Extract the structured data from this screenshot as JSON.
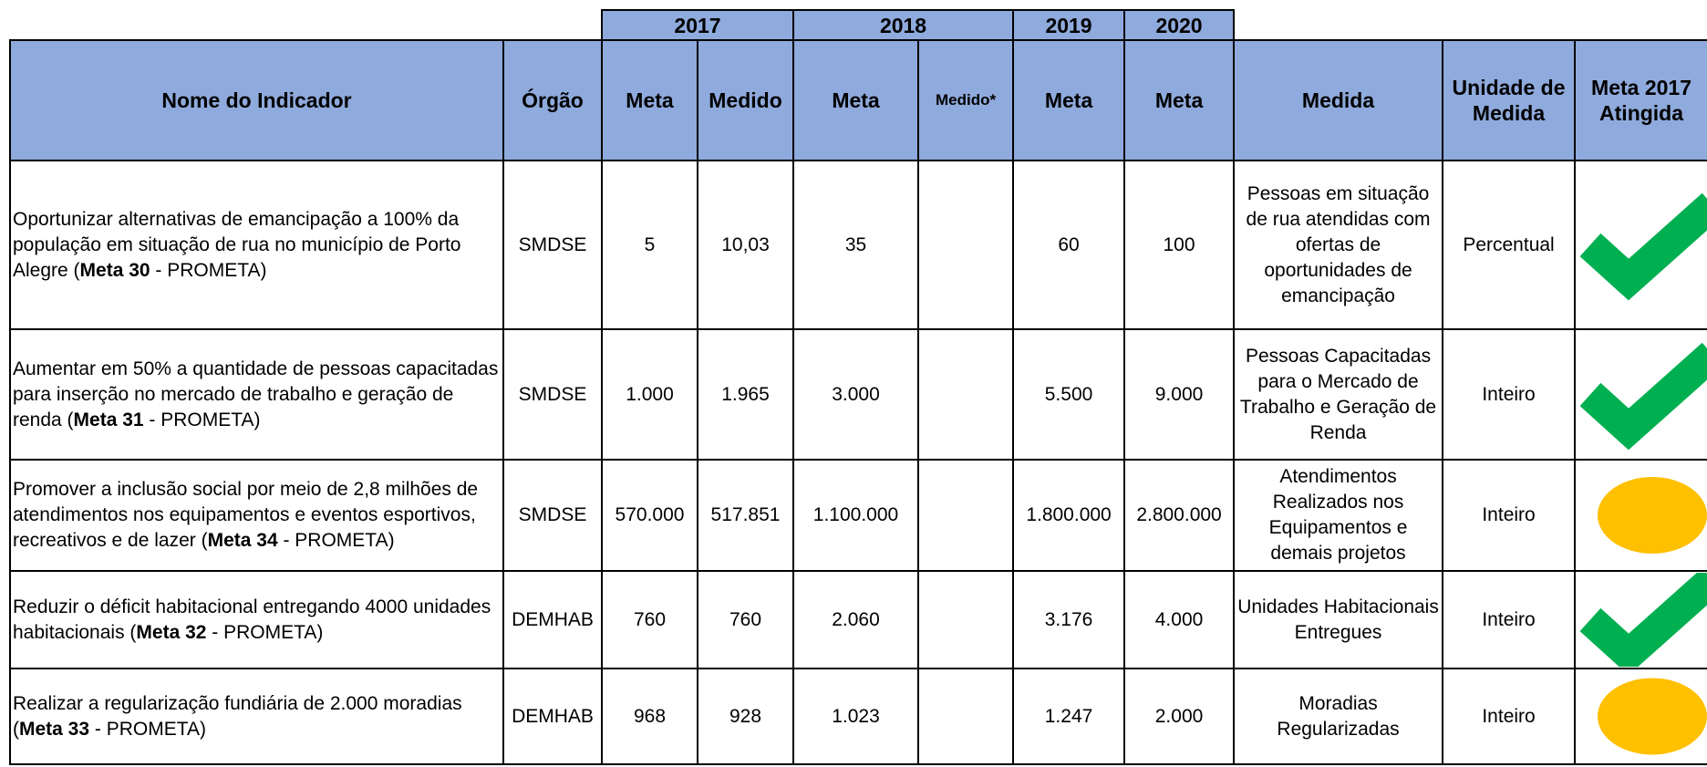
{
  "table": {
    "years": [
      "2017",
      "2018",
      "2019",
      "2020"
    ],
    "header": [
      "Nome do Indicador",
      "Órgão",
      "Meta",
      "Medido",
      "Meta",
      "Medido*",
      "Meta",
      "Meta",
      "Medida",
      "Unidade de Medida",
      "Meta 2017 Atingida"
    ],
    "rows": [
      {
        "name": [
          "Oportunizar alternativas de emancipação a 100% da população em situação de rua no município de Porto Alegre (",
          "Meta 30",
          " - PROMETA)"
        ],
        "orgao": "SMDSE",
        "meta2017": "5",
        "medido2017": "10,03",
        "meta2018": "35",
        "meta2019": "60",
        "meta2020": "100",
        "medida": "Pessoas em situação de rua atendidas com ofertas de oportunidades de emancipação",
        "unidade": "Percentual",
        "status_icon": "check",
        "status_color": "#00b050"
      },
      {
        "name": [
          "Aumentar em 50% a quantidade de pessoas capacitadas para inserção no mercado de trabalho e geração de renda (",
          "Meta 31",
          " - PROMETA)"
        ],
        "orgao": "SMDSE",
        "meta2017": "1.000",
        "medido2017": "1.965",
        "meta2018": "3.000",
        "meta2019": "5.500",
        "meta2020": "9.000",
        "medida": "Pessoas Capacitadas para o Mercado de Trabalho e Geração de Renda",
        "unidade": "Inteiro",
        "status_icon": "check",
        "status_color": "#00b050"
      },
      {
        "name": [
          "Promover a inclusão social por meio de 2,8 milhões de atendimentos nos equipamentos e eventos esportivos, recreativos e de lazer (",
          "Meta 34",
          " - PROMETA)"
        ],
        "orgao": "SMDSE",
        "meta2017": "570.000",
        "medido2017": "517.851",
        "meta2018": "1.100.000",
        "meta2019": "1.800.000",
        "meta2020": "2.800.000",
        "medida": "Atendimentos Realizados nos Equipamentos e demais projetos",
        "unidade": "Inteiro",
        "status_icon": "circle",
        "status_color": "#ffc000"
      },
      {
        "name": [
          "Reduzir o déficit habitacional entregando 4000 unidades habitacionais (",
          "Meta 32",
          " - PROMETA)"
        ],
        "orgao": "DEMHAB",
        "meta2017": "760",
        "medido2017": "760",
        "meta2018": "2.060",
        "meta2019": "3.176",
        "meta2020": "4.000",
        "medida": "Unidades Habitacionais Entregues",
        "unidade": "Inteiro",
        "status_icon": "check",
        "status_color": "#00b050"
      },
      {
        "name": [
          "Realizar a regularização fundiária de 2.000 moradias (",
          "Meta 33",
          " - PROMETA)"
        ],
        "orgao": "DEMHAB",
        "meta2017": "968",
        "medido2017": "928",
        "meta2018": "1.023",
        "meta2019": "1.247",
        "meta2020": "2.000",
        "medida": "Moradias Regularizadas",
        "unidade": "Inteiro",
        "status_icon": "circle",
        "status_color": "#ffc000"
      }
    ]
  }
}
